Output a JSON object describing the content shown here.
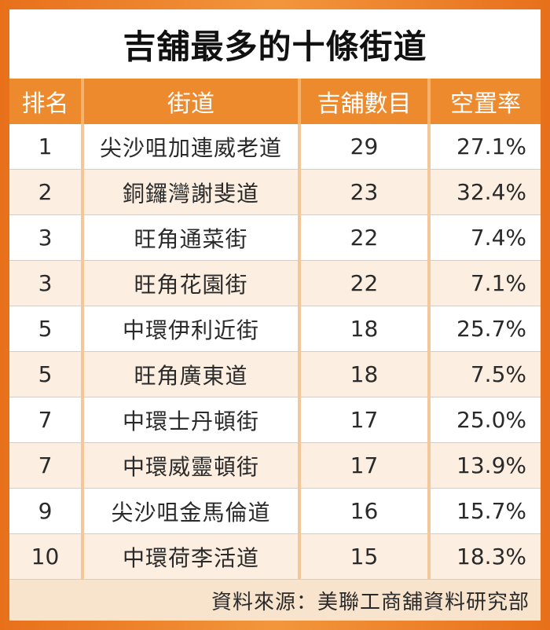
{
  "title": "吉舖最多的十條街道",
  "headers": {
    "rank": "排名",
    "street": "街道",
    "count": "吉舖數目",
    "vacancy": "空置率"
  },
  "rows": [
    {
      "rank": "1",
      "street": "尖沙咀加連威老道",
      "count": "29",
      "vacancy": "27.1%"
    },
    {
      "rank": "2",
      "street": "銅鑼灣謝斐道",
      "count": "23",
      "vacancy": "32.4%"
    },
    {
      "rank": "3",
      "street": "旺角通菜街",
      "count": "22",
      "vacancy": "7.4%"
    },
    {
      "rank": "3",
      "street": "旺角花園街",
      "count": "22",
      "vacancy": "7.1%"
    },
    {
      "rank": "5",
      "street": "中環伊利近街",
      "count": "18",
      "vacancy": "25.7%"
    },
    {
      "rank": "5",
      "street": "旺角廣東道",
      "count": "18",
      "vacancy": "7.5%"
    },
    {
      "rank": "7",
      "street": "中環士丹頓街",
      "count": "17",
      "vacancy": "25.0%"
    },
    {
      "rank": "7",
      "street": "中環威靈頓街",
      "count": "17",
      "vacancy": "13.9%"
    },
    {
      "rank": "9",
      "street": "尖沙咀金馬倫道",
      "count": "16",
      "vacancy": "15.7%"
    },
    {
      "rank": "10",
      "street": "中環荷李活道",
      "count": "15",
      "vacancy": "18.3%"
    }
  ],
  "source": "資料來源：美聯工商舖資料研究部",
  "colors": {
    "frame": "#e8701b",
    "header": "#ee8a2e",
    "row_alt": "#fceee0",
    "footer": "#f8e3cc"
  }
}
